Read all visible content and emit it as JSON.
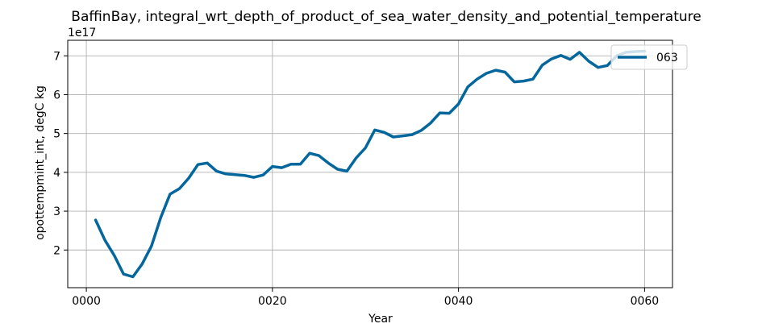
{
  "chart_data": {
    "type": "line",
    "title": "BaffinBay, integral_wrt_depth_of_product_of_sea_water_density_and_potential_temperature",
    "xlabel": "Year",
    "ylabel": "opottempmint_int, degC kg",
    "y_offset_label": "1e17",
    "xlim": [
      -2,
      63
    ],
    "ylim": [
      1.03,
      7.4
    ],
    "x_ticks": [
      0,
      20,
      40,
      60
    ],
    "x_tick_labels": [
      "0000",
      "0020",
      "0040",
      "0060"
    ],
    "y_ticks": [
      2,
      3,
      4,
      5,
      6,
      7
    ],
    "y_tick_labels": [
      "2",
      "3",
      "4",
      "5",
      "6",
      "7"
    ],
    "grid": true,
    "legend_position": "top-right",
    "series": [
      {
        "name": "063",
        "color": "#03679d",
        "x": [
          1,
          2,
          3,
          4,
          5,
          6,
          7,
          8,
          9,
          10,
          11,
          12,
          13,
          14,
          15,
          16,
          17,
          18,
          19,
          20,
          21,
          22,
          23,
          24,
          25,
          26,
          27,
          28,
          29,
          30,
          31,
          32,
          33,
          34,
          35,
          36,
          37,
          38,
          39,
          40,
          41,
          42,
          43,
          44,
          45,
          46,
          47,
          48,
          49,
          50,
          51,
          52,
          53,
          54,
          55,
          56,
          57,
          58,
          59,
          60
        ],
        "values": [
          2.77,
          2.25,
          1.86,
          1.38,
          1.31,
          1.64,
          2.1,
          2.84,
          3.44,
          3.58,
          3.85,
          4.2,
          4.24,
          4.03,
          3.96,
          3.94,
          3.92,
          3.87,
          3.93,
          4.15,
          4.12,
          4.21,
          4.21,
          4.49,
          4.43,
          4.24,
          4.08,
          4.03,
          4.37,
          4.63,
          5.09,
          5.03,
          4.91,
          4.94,
          4.97,
          5.08,
          5.27,
          5.53,
          5.52,
          5.76,
          6.2,
          6.4,
          6.55,
          6.63,
          6.58,
          6.33,
          6.35,
          6.4,
          6.76,
          6.92,
          7.01,
          6.91,
          7.09,
          6.86,
          6.7,
          6.75,
          7.0,
          7.09,
          7.11,
          7.12
        ]
      }
    ]
  }
}
